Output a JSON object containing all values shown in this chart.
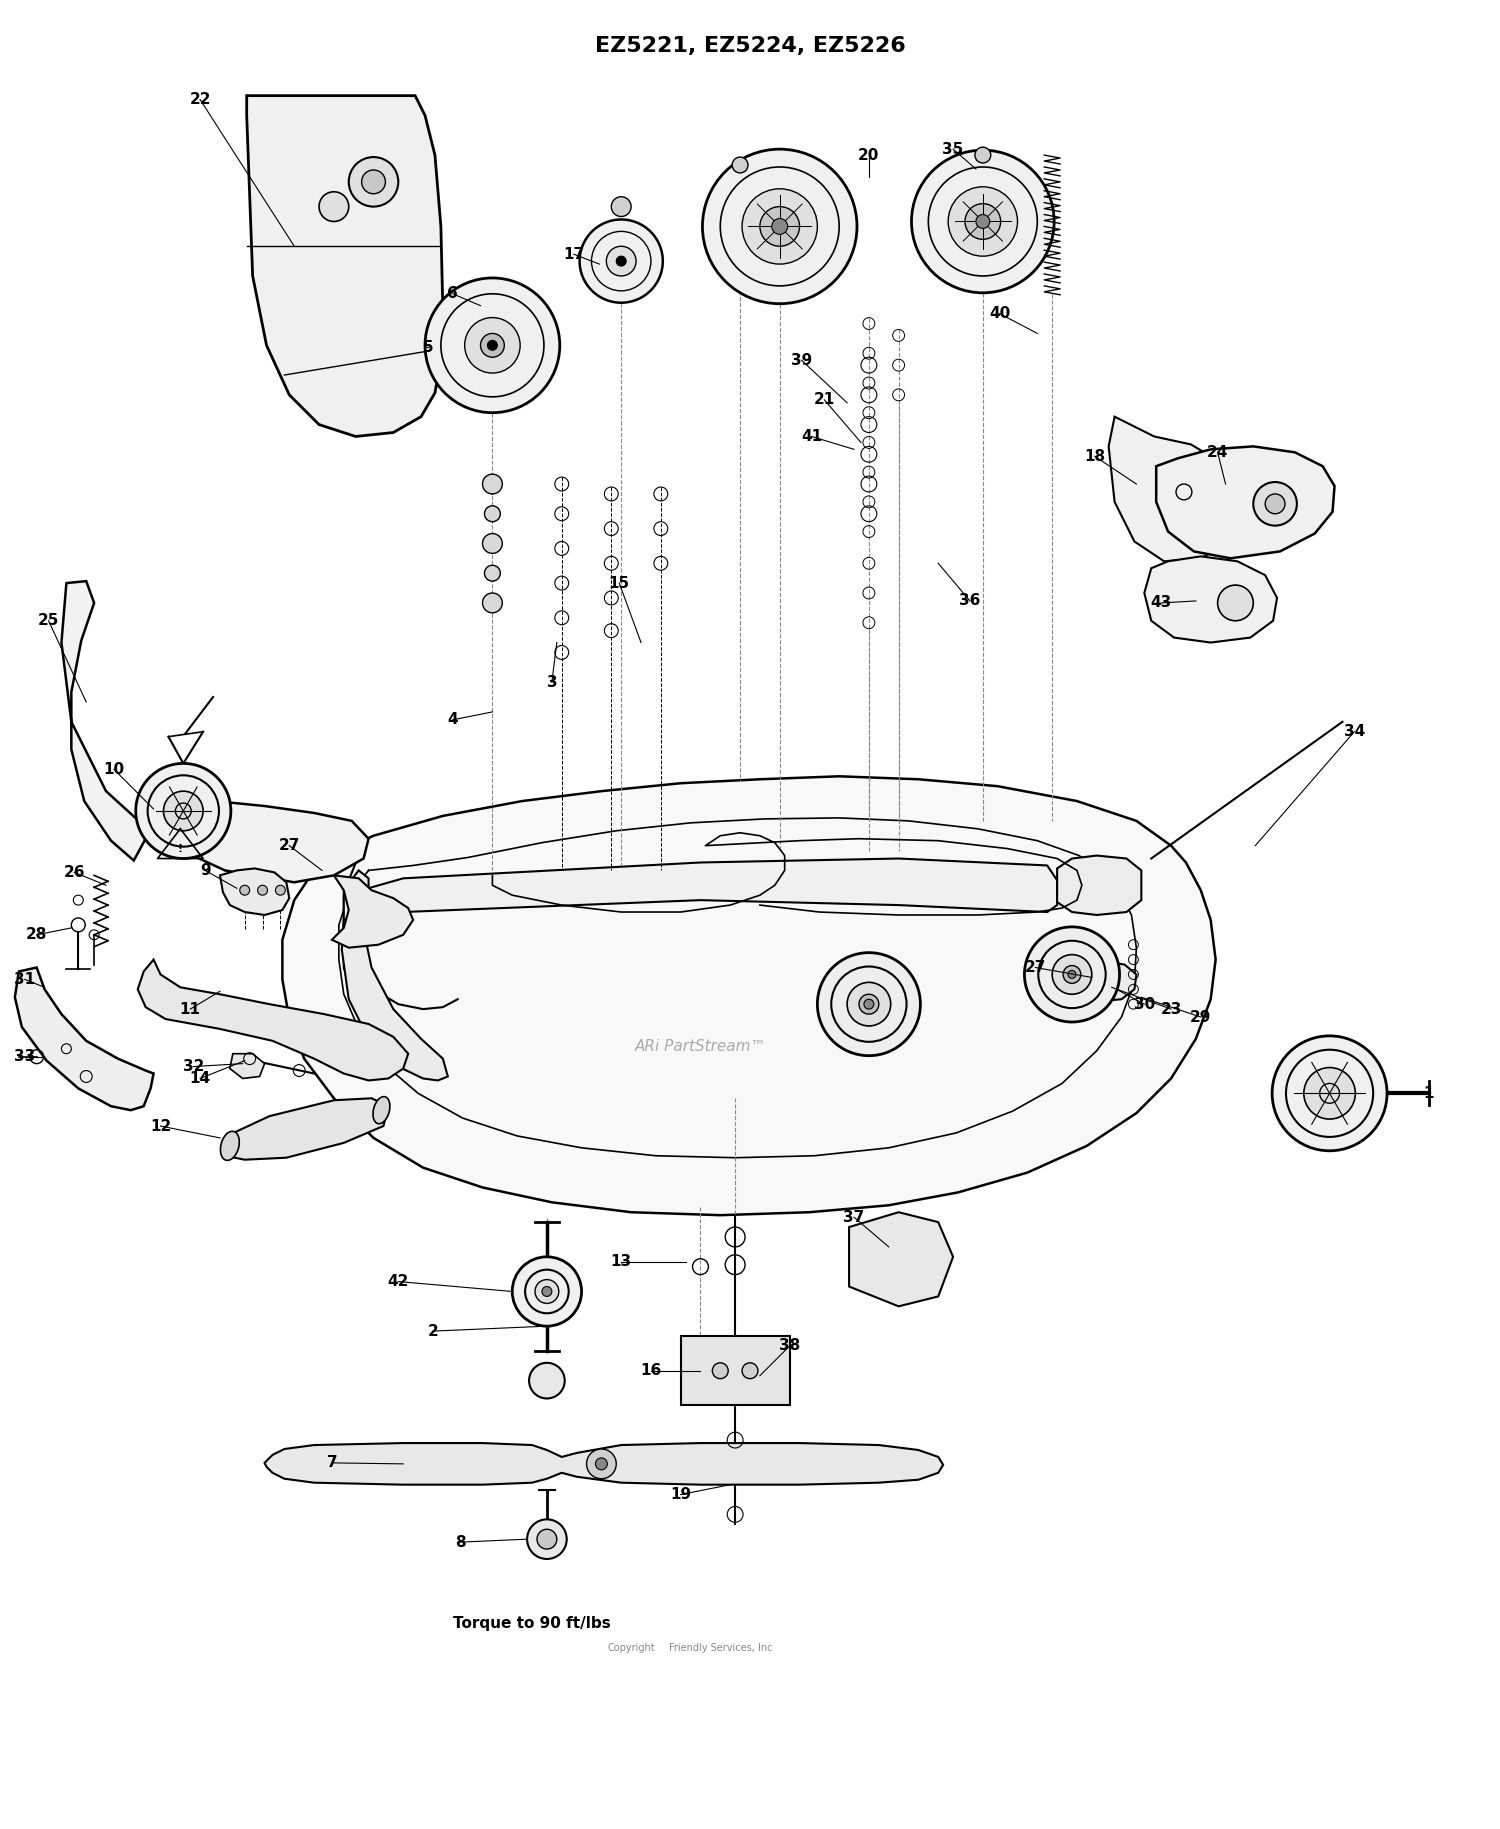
{
  "title": "EZ5221, EZ5224, EZ5226",
  "title_fontsize": 16,
  "title_fontweight": "bold",
  "bottom_text": "Torque to 90 ft/lbs",
  "bottom_copyright": "Copyright",
  "bottom_services": "Friendly Services, Inc",
  "watermark": "ARi PartStream™",
  "background_color": "#ffffff",
  "figsize": [
    15.0,
    18.29
  ],
  "dpi": 100
}
